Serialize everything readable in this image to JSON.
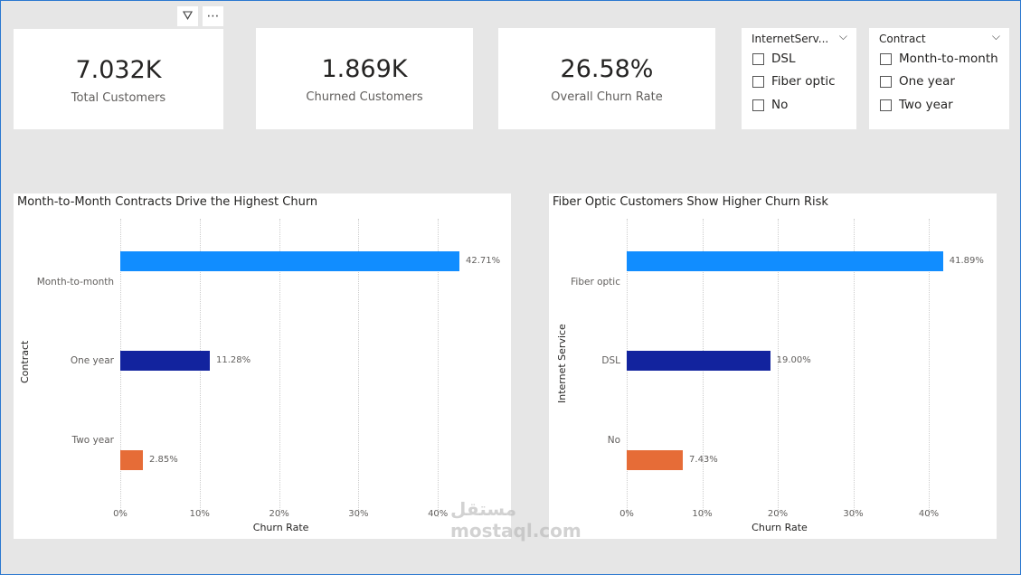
{
  "kpis": [
    {
      "value": "7.032K",
      "label": "Total Customers"
    },
    {
      "value": "1.869K",
      "label": "Churned Customers"
    },
    {
      "value": "26.58%",
      "label": "Overall Churn Rate"
    }
  ],
  "slicers": [
    {
      "header": "InternetServ...",
      "options": [
        "DSL",
        "Fiber optic",
        "No"
      ]
    },
    {
      "header": "Contract",
      "options": [
        "Month-to-month",
        "One year",
        "Two year"
      ]
    }
  ],
  "watermark": "mostaql.com",
  "chart_data": [
    {
      "type": "bar",
      "orientation": "horizontal",
      "title": "Month-to-Month Contracts Drive the Highest Churn",
      "xlabel": "Churn Rate",
      "ylabel": "Contract",
      "categories": [
        "Month-to-month",
        "One year",
        "Two year"
      ],
      "values": [
        42.71,
        11.28,
        2.85
      ],
      "data_labels": [
        "42.71%",
        "11.28%",
        "2.85%"
      ],
      "colors": [
        "#118dff",
        "#12239e",
        "#e66c37"
      ],
      "xticks": [
        "0%",
        "10%",
        "20%",
        "30%",
        "40%"
      ],
      "xlim": [
        0,
        45
      ],
      "grid": true
    },
    {
      "type": "bar",
      "orientation": "horizontal",
      "title": "Fiber Optic Customers Show Higher Churn Risk",
      "xlabel": "Churn Rate",
      "ylabel": "Internet Service",
      "categories": [
        "Fiber optic",
        "DSL",
        "No"
      ],
      "values": [
        41.89,
        19.0,
        7.43
      ],
      "data_labels": [
        "41.89%",
        "19.00%",
        "7.43%"
      ],
      "colors": [
        "#118dff",
        "#12239e",
        "#e66c37"
      ],
      "xticks": [
        "0%",
        "10%",
        "20%",
        "30%",
        "40%"
      ],
      "xlim": [
        0,
        45
      ],
      "grid": true
    }
  ]
}
